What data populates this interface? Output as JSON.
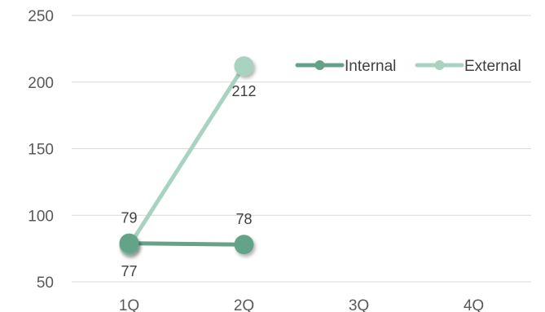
{
  "chart_data": {
    "type": "line",
    "categories": [
      "1Q",
      "2Q",
      "3Q",
      "4Q"
    ],
    "ylim": [
      50,
      250
    ],
    "yticks": [
      50,
      100,
      150,
      200,
      250
    ],
    "grid": true,
    "legend_position": "top-right",
    "series": [
      {
        "name": "Internal",
        "color": "#64A38A",
        "values": [
          79,
          78,
          null,
          null
        ],
        "labels": [
          "79",
          "78",
          "",
          ""
        ],
        "label_position": [
          "above",
          "above",
          "",
          ""
        ]
      },
      {
        "name": "External",
        "color": "#A8D3C1",
        "values": [
          77,
          212,
          null,
          null
        ],
        "labels": [
          "77",
          "212",
          "",
          ""
        ],
        "label_position": [
          "below",
          "below",
          "",
          ""
        ]
      }
    ]
  }
}
